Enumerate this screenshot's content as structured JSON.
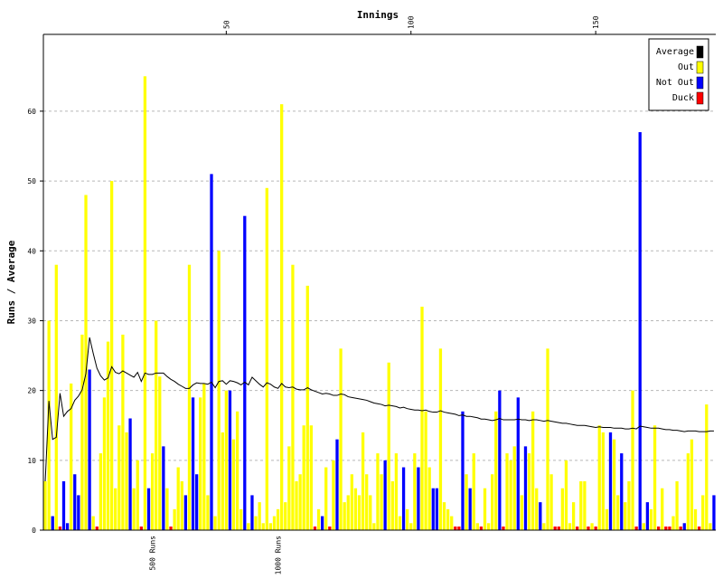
{
  "chart_data": {
    "type": "bar",
    "title": "",
    "xlabel": "Innings",
    "ylabel": "Runs / Average",
    "xlim": [
      1,
      183
    ],
    "ylim": [
      0,
      71
    ],
    "x_ticks": [
      50,
      100,
      150
    ],
    "y_ticks": [
      0,
      10,
      20,
      30,
      40,
      50,
      60
    ],
    "milestone_labels": [
      {
        "label": "500 Runs",
        "innings": 30
      },
      {
        "label": "1000 Runs",
        "innings": 64
      }
    ],
    "grid": true,
    "legend_position": "top-right",
    "legend": [
      {
        "label": "Average",
        "color": "#000000"
      },
      {
        "label": "Out",
        "color": "#ffff00"
      },
      {
        "label": "Not Out",
        "color": "#0000ff"
      },
      {
        "label": "Duck",
        "color": "#ff0000"
      }
    ],
    "runs": [
      7,
      30,
      2,
      38,
      0,
      7,
      1,
      21,
      8,
      5,
      28,
      48,
      23,
      2,
      0,
      11,
      19,
      27,
      50,
      6,
      15,
      28,
      14,
      16,
      6,
      10,
      0,
      65,
      6,
      11,
      30,
      22,
      12,
      6,
      0,
      3,
      9,
      7,
      5,
      38,
      19,
      8,
      19,
      21,
      5,
      51,
      2,
      40,
      14,
      20,
      20,
      13,
      17,
      3,
      45,
      1,
      5,
      2,
      4,
      1,
      49,
      1,
      2,
      3,
      61,
      4,
      12,
      38,
      7,
      8,
      15,
      35,
      15,
      0,
      3,
      2,
      9,
      0,
      10,
      13,
      26,
      4,
      5,
      8,
      6,
      5,
      14,
      8,
      5,
      1,
      11,
      8,
      10,
      24,
      7,
      11,
      2,
      9,
      3,
      1,
      11,
      9,
      32,
      17,
      9,
      6,
      6,
      26,
      4,
      3,
      2,
      0,
      0,
      17,
      8,
      6,
      11,
      1,
      0,
      6,
      1,
      8,
      17,
      20,
      0,
      11,
      10,
      12,
      19,
      5,
      12,
      11,
      17,
      6,
      4,
      1,
      26,
      8,
      0,
      0,
      6,
      10,
      1,
      4,
      0,
      7,
      7,
      0,
      1,
      0,
      15,
      14,
      3,
      14,
      13,
      5,
      11,
      4,
      7,
      20,
      0,
      57,
      1,
      4,
      3,
      15,
      0,
      6,
      0,
      0,
      2,
      7,
      0,
      1,
      11,
      13,
      3,
      0,
      5,
      18,
      1,
      5
    ],
    "not_outs": [
      0,
      0,
      1,
      0,
      0,
      1,
      1,
      0,
      1,
      1,
      0,
      0,
      1,
      0,
      0,
      0,
      0,
      0,
      0,
      0,
      0,
      0,
      0,
      1,
      0,
      0,
      0,
      0,
      1,
      0,
      0,
      0,
      1,
      0,
      0,
      0,
      0,
      0,
      1,
      0,
      1,
      1,
      0,
      0,
      0,
      1,
      0,
      0,
      0,
      0,
      1,
      0,
      0,
      0,
      1,
      0,
      1,
      0,
      0,
      0,
      0,
      0,
      0,
      0,
      0,
      0,
      0,
      0,
      0,
      0,
      0,
      0,
      0,
      0,
      0,
      1,
      0,
      0,
      0,
      1,
      0,
      0,
      0,
      0,
      0,
      0,
      0,
      0,
      0,
      0,
      0,
      0,
      1,
      0,
      0,
      0,
      0,
      1,
      0,
      0,
      0,
      1,
      0,
      0,
      0,
      1,
      1,
      0,
      0,
      0,
      0,
      0,
      0,
      1,
      0,
      1,
      0,
      0,
      0,
      0,
      0,
      0,
      0,
      1,
      0,
      0,
      0,
      0,
      1,
      0,
      1,
      0,
      0,
      0,
      1,
      0,
      0,
      0,
      0,
      0,
      0,
      0,
      0,
      0,
      0,
      0,
      0,
      0,
      0,
      0,
      0,
      0,
      0,
      1,
      0,
      0,
      1,
      0,
      0,
      0,
      0,
      1,
      0,
      1,
      0,
      0,
      0,
      0,
      0,
      0,
      0,
      0,
      0,
      1,
      0,
      0,
      0,
      0,
      0,
      0,
      0,
      1,
      0
    ],
    "average": [
      7,
      18.5,
      13,
      13.3,
      19.6,
      16.3,
      17,
      17.4,
      18.6,
      19.2,
      20.1,
      22.4,
      27.6,
      25.3,
      23.2,
      22.1,
      21.5,
      21.8,
      23.4,
      22.6,
      22.4,
      22.8,
      22.5,
      22.2,
      21.9,
      22.6,
      21.3,
      22.5,
      22.3,
      22.3,
      22.5,
      22.5,
      22.5,
      22,
      21.6,
      21.3,
      20.9,
      20.6,
      20.3,
      20.3,
      20.8,
      21.1,
      21,
      21,
      20.9,
      21.2,
      20.4,
      21.3,
      21.4,
      20.9,
      21.4,
      21.3,
      21.1,
      20.8,
      21.2,
      20.8,
      21.9,
      21.4,
      20.9,
      20.5,
      21.1,
      20.9,
      20.5,
      20.3,
      21,
      20.5,
      20.4,
      20.5,
      20.2,
      20.1,
      20.1,
      20.4,
      20.1,
      19.9,
      19.7,
      19.5,
      19.6,
      19.5,
      19.3,
      19.3,
      19.5,
      19.4,
      19.1,
      19,
      18.9,
      18.8,
      18.7,
      18.6,
      18.4,
      18.2,
      18.1,
      18,
      17.8,
      17.9,
      17.8,
      17.7,
      17.5,
      17.6,
      17.4,
      17.3,
      17.2,
      17.2,
      17.1,
      17.2,
      17,
      16.9,
      16.9,
      17.1,
      16.9,
      16.8,
      16.7,
      16.6,
      16.4,
      16.5,
      16.3,
      16.3,
      16.2,
      16.1,
      15.9,
      15.9,
      15.8,
      15.7,
      15.8,
      16,
      15.8,
      15.8,
      15.8,
      15.8,
      15.9,
      15.8,
      15.8,
      15.7,
      15.8,
      15.8,
      15.7,
      15.6,
      15.7,
      15.6,
      15.5,
      15.4,
      15.3,
      15.3,
      15.2,
      15.1,
      15,
      15,
      15,
      14.9,
      14.8,
      14.7,
      14.8,
      14.7,
      14.7,
      14.7,
      14.6,
      14.6,
      14.6,
      14.5,
      14.5,
      14.6,
      14.5,
      14.9,
      14.8,
      14.7,
      14.6,
      14.6,
      14.6,
      14.5,
      14.4,
      14.4,
      14.3,
      14.3,
      14.2,
      14.1,
      14.2,
      14.2,
      14.2,
      14.1,
      14.1,
      14.1,
      14.2,
      14.2
    ]
  }
}
